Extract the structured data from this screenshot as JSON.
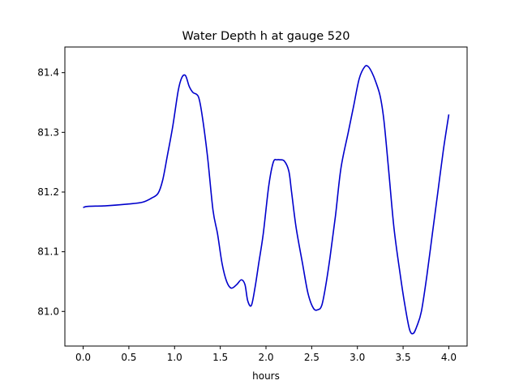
{
  "chart_data": {
    "type": "line",
    "title": "Water Depth h at gauge 520",
    "xlabel": "hours",
    "ylabel": "",
    "xlim": [
      -0.2,
      4.2
    ],
    "ylim": [
      80.942,
      81.443
    ],
    "xticks": [
      "0.0",
      "0.5",
      "1.0",
      "1.5",
      "2.0",
      "2.5",
      "3.0",
      "3.5",
      "4.0"
    ],
    "yticks": [
      "81.0",
      "81.1",
      "81.2",
      "81.3",
      "81.4"
    ],
    "grid": false,
    "colors": {
      "line": "#0000cc",
      "axes": "#000000",
      "background": "#ffffff"
    },
    "series": [
      {
        "x": [
          0.0,
          0.05,
          0.25,
          0.5,
          0.65,
          0.75,
          0.82,
          0.87,
          0.92,
          0.98,
          1.04,
          1.08,
          1.12,
          1.16,
          1.2,
          1.26,
          1.3,
          1.36,
          1.42,
          1.47,
          1.52,
          1.57,
          1.62,
          1.68,
          1.73,
          1.77,
          1.8,
          1.84,
          1.88,
          1.92,
          1.97,
          2.03,
          2.08,
          2.12,
          2.15,
          2.2,
          2.25,
          2.28,
          2.33,
          2.4,
          2.46,
          2.52,
          2.57,
          2.61,
          2.65,
          2.7,
          2.76,
          2.82,
          2.9,
          2.96,
          3.02,
          3.08,
          3.12,
          3.16,
          3.2,
          3.25,
          3.29,
          3.34,
          3.4,
          3.47,
          3.52,
          3.57,
          3.61,
          3.65,
          3.7,
          3.76,
          3.82,
          3.88,
          3.94,
          4.0
        ],
        "values": [
          81.174,
          81.176,
          81.177,
          81.18,
          81.183,
          81.19,
          81.198,
          81.22,
          81.26,
          81.31,
          81.37,
          81.392,
          81.395,
          81.377,
          81.367,
          81.36,
          81.33,
          81.26,
          81.17,
          81.13,
          81.08,
          81.05,
          81.039,
          81.045,
          81.053,
          81.045,
          81.018,
          81.01,
          81.04,
          81.08,
          81.13,
          81.21,
          81.25,
          81.254,
          81.254,
          81.252,
          81.235,
          81.2,
          81.14,
          81.08,
          81.03,
          81.005,
          81.003,
          81.01,
          81.04,
          81.09,
          81.16,
          81.24,
          81.3,
          81.345,
          81.39,
          81.41,
          81.41,
          81.4,
          81.385,
          81.36,
          81.32,
          81.24,
          81.14,
          81.06,
          81.01,
          80.97,
          80.963,
          80.975,
          81.0,
          81.06,
          81.13,
          81.2,
          81.27,
          81.33
        ]
      }
    ]
  }
}
